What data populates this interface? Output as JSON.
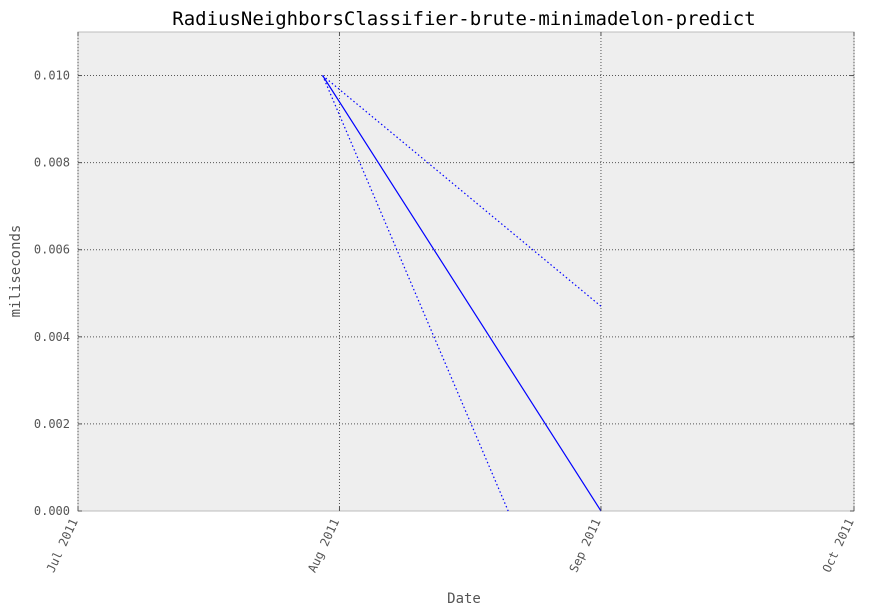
{
  "chart_data": {
    "type": "line",
    "title": "RadiusNeighborsClassifier-brute-minimadelon-predict",
    "xlabel": "Date",
    "ylabel": "miliseconds",
    "x_range": [
      "2011-07-01",
      "2011-10-01"
    ],
    "ylim": [
      0,
      0.011
    ],
    "x_ticks": [
      {
        "date": "2011-07-01",
        "label": "Jul 2011"
      },
      {
        "date": "2011-08-01",
        "label": "Aug 2011"
      },
      {
        "date": "2011-09-01",
        "label": "Sep 2011"
      },
      {
        "date": "2011-10-01",
        "label": "Oct 2011"
      }
    ],
    "y_ticks": [
      {
        "value": 0.0,
        "label": "0.000"
      },
      {
        "value": 0.002,
        "label": "0.002"
      },
      {
        "value": 0.004,
        "label": "0.004"
      },
      {
        "value": 0.006,
        "label": "0.006"
      },
      {
        "value": 0.008,
        "label": "0.008"
      },
      {
        "value": 0.01,
        "label": "0.010"
      }
    ],
    "grid": true,
    "series": [
      {
        "style": "solid",
        "color": "#0000ff",
        "points": [
          {
            "x": "2011-07-30",
            "y": 0.01
          },
          {
            "x": "2011-09-01",
            "y": 0.0
          }
        ]
      },
      {
        "style": "dotted",
        "color": "#0000ff",
        "points": [
          {
            "x": "2011-07-30",
            "y": 0.01
          },
          {
            "x": "2011-09-01",
            "y": 0.0047
          }
        ]
      },
      {
        "style": "dotted",
        "color": "#0000ff",
        "points": [
          {
            "x": "2011-07-30",
            "y": 0.01
          },
          {
            "x": "2011-08-21",
            "y": 0.0
          }
        ]
      }
    ]
  }
}
